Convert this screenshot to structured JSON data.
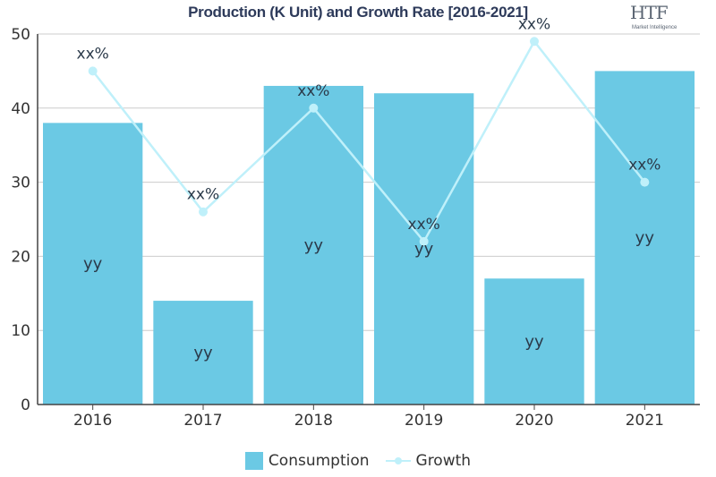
{
  "title": "Production (K Unit) and Growth Rate [2016-2021]",
  "logo": {
    "text": "HTF",
    "subtext": "Market Intelligence"
  },
  "colors": {
    "bar": "#6bc9e4",
    "line": "#bff0fa",
    "axis": "#444444",
    "grid": "#cccccc"
  },
  "chart_data": {
    "type": "bar",
    "categories": [
      "2016",
      "2017",
      "2018",
      "2019",
      "2020",
      "2021"
    ],
    "ylim": [
      0,
      50
    ],
    "yticks": [
      0,
      10,
      20,
      30,
      40,
      50
    ],
    "grid": true,
    "legend_position": "bottom",
    "series": [
      {
        "name": "Consumption",
        "type": "bar",
        "values": [
          38,
          14,
          43,
          42,
          17,
          45
        ],
        "labels": [
          "yy",
          "yy",
          "yy",
          "yy",
          "yy",
          "yy"
        ]
      },
      {
        "name": "Growth",
        "type": "line",
        "values": [
          45,
          26,
          40,
          22,
          49,
          30
        ],
        "labels": [
          "xx%",
          "xx%",
          "xx%",
          "xx%",
          "xx%",
          "xx%"
        ]
      }
    ]
  }
}
